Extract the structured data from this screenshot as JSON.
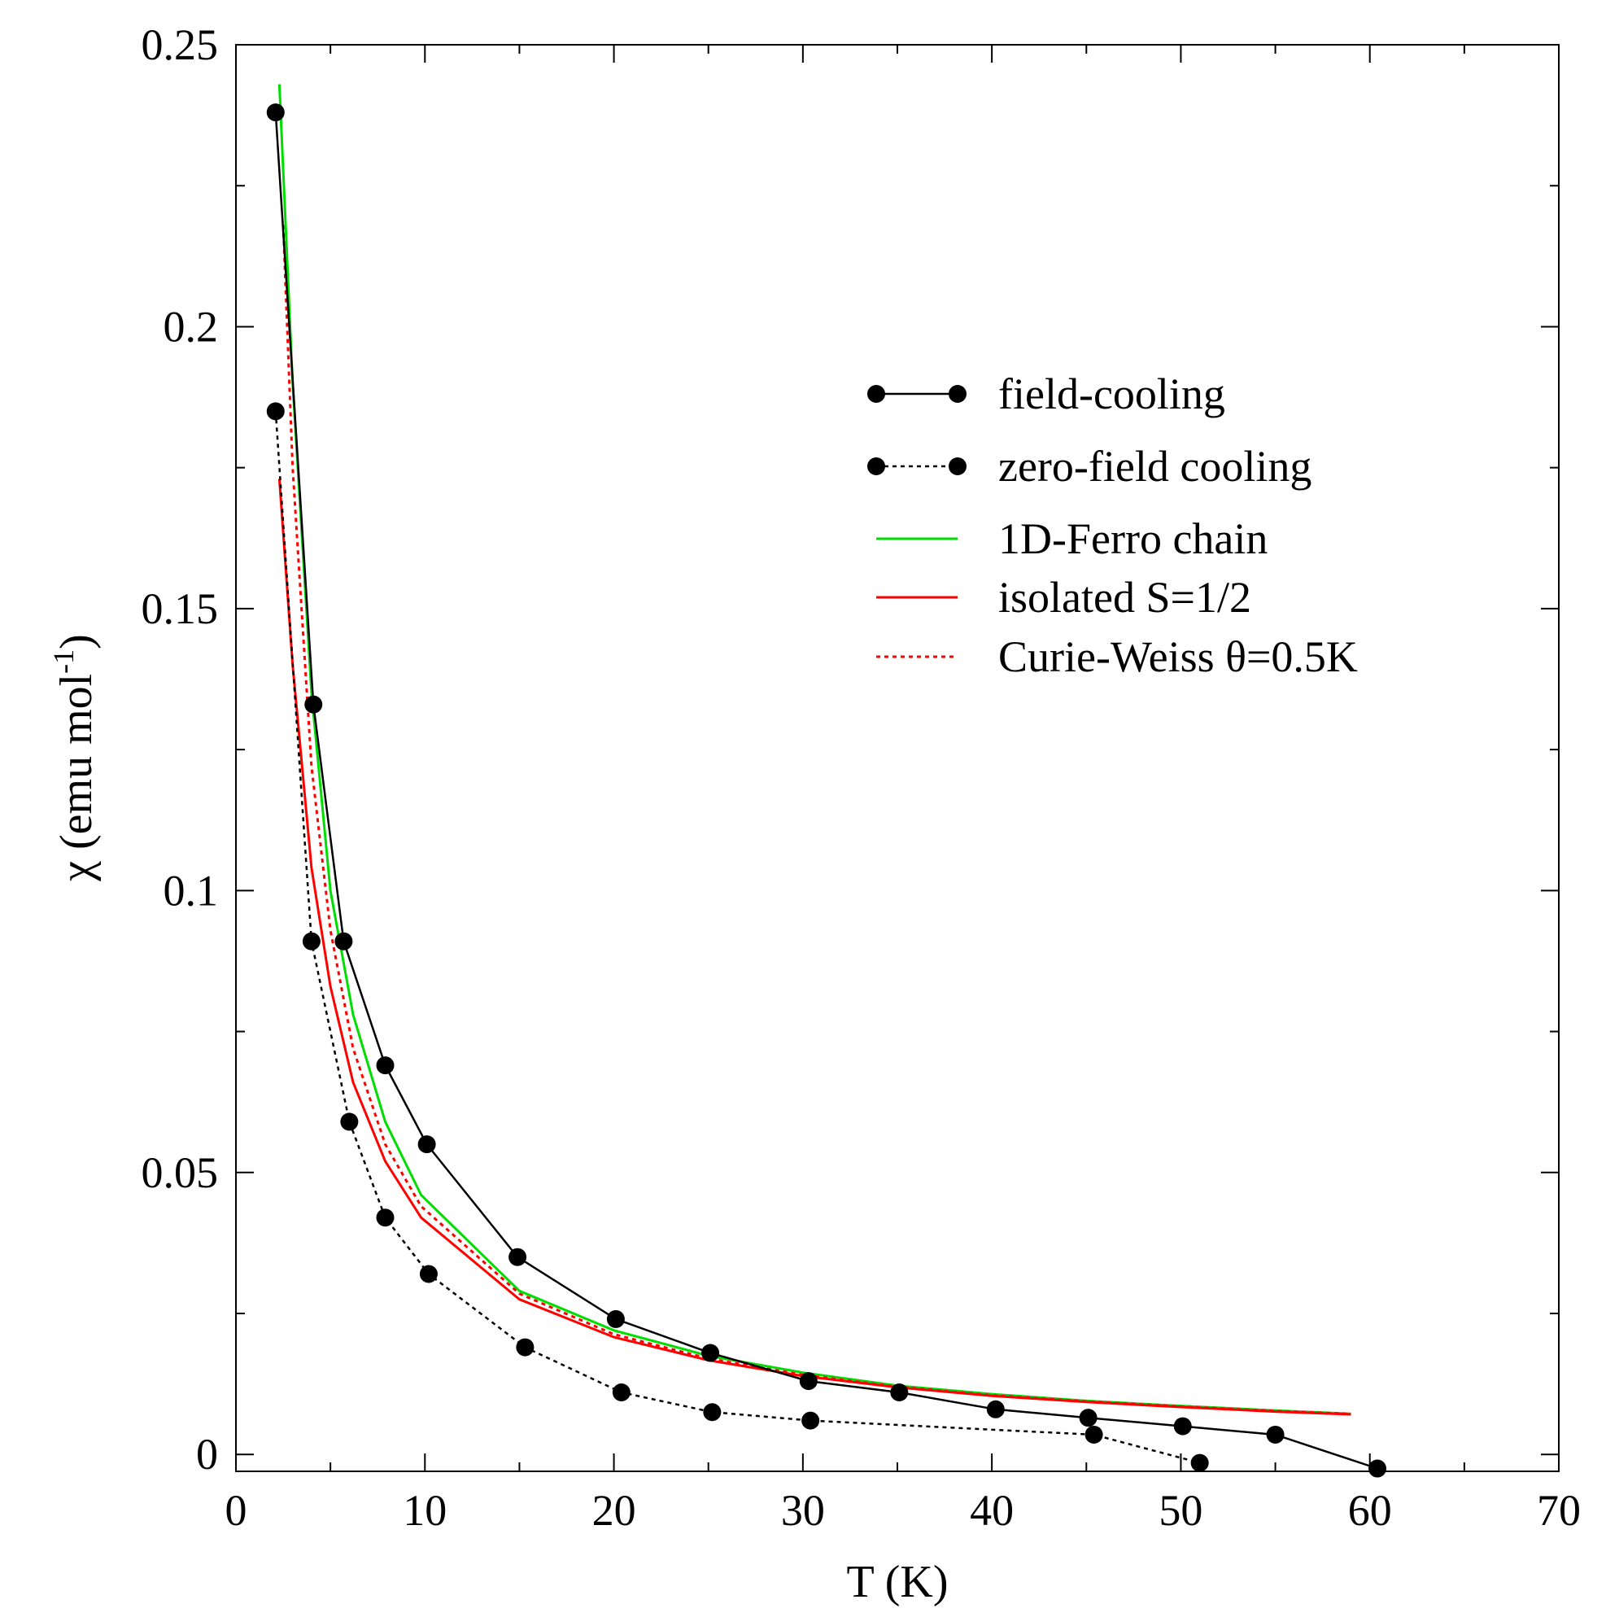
{
  "chart_data": {
    "type": "line",
    "title": "",
    "xlabel": "T (K)",
    "ylabel_main": "χ (emu mol",
    "ylabel_sup": "-1",
    "ylabel_close": ")",
    "xlim": [
      0,
      70
    ],
    "ylim": [
      -0.003,
      0.25
    ],
    "grid": false,
    "legend_position": "top-right",
    "x_ticks": [
      0,
      10,
      20,
      30,
      40,
      50,
      60,
      70
    ],
    "x_tick_labels": [
      "0",
      "10",
      "20",
      "30",
      "40",
      "50",
      "60",
      "70"
    ],
    "x_minor_ticks": [
      5,
      15,
      25,
      35,
      45,
      55,
      65
    ],
    "y_ticks": [
      0,
      0.05,
      0.1,
      0.15,
      0.2,
      0.25
    ],
    "y_tick_labels": [
      "0",
      "0.05",
      "0.1",
      "0.15",
      "0.2",
      "0.25"
    ],
    "y_minor_ticks": [
      0.025,
      0.075,
      0.125,
      0.175,
      0.225
    ],
    "series": [
      {
        "name": "field-cooling",
        "color": "#000000",
        "style": "solid",
        "markers": true,
        "x": [
          2.1,
          4.1,
          5.7,
          7.9,
          10.1,
          14.9,
          20.1,
          25.1,
          30.3,
          35.1,
          40.2,
          45.1,
          50.1,
          55.0,
          60.4
        ],
        "y": [
          0.238,
          0.133,
          0.091,
          0.069,
          0.055,
          0.035,
          0.024,
          0.018,
          0.013,
          0.011,
          0.008,
          0.0065,
          0.005,
          0.0035,
          -0.0025
        ]
      },
      {
        "name": "zero-field cooling",
        "color": "#000000",
        "style": "dotted",
        "markers": true,
        "x": [
          2.1,
          4.0,
          6.0,
          7.9,
          10.2,
          15.3,
          20.4,
          25.2,
          30.4,
          45.4,
          51.0
        ],
        "y": [
          0.185,
          0.091,
          0.059,
          0.042,
          0.032,
          0.019,
          0.011,
          0.0075,
          0.006,
          0.0035,
          -0.0015
        ]
      },
      {
        "name": "1D-Ferro chain",
        "color": "#00dd00",
        "style": "solid",
        "markers": false,
        "x": [
          2.3,
          3.0,
          4.0,
          5.0,
          6.2,
          7.9,
          9.8,
          15.0,
          20.0,
          25.0,
          30.0,
          35.0,
          40.0,
          45.0,
          50.0,
          55.0,
          59.0
        ],
        "y": [
          0.243,
          0.19,
          0.135,
          0.1,
          0.078,
          0.059,
          0.046,
          0.029,
          0.022,
          0.0175,
          0.0145,
          0.0122,
          0.0107,
          0.0095,
          0.0086,
          0.0078,
          0.0072
        ]
      },
      {
        "name": "isolated S=1/2",
        "color": "#ff0000",
        "style": "solid",
        "markers": false,
        "x": [
          2.3,
          3.0,
          4.0,
          5.0,
          6.2,
          7.9,
          9.8,
          15.0,
          20.0,
          25.0,
          30.0,
          35.0,
          40.0,
          45.0,
          50.0,
          55.0,
          59.0
        ],
        "y": [
          0.173,
          0.14,
          0.104,
          0.083,
          0.066,
          0.052,
          0.042,
          0.0275,
          0.0208,
          0.0167,
          0.0139,
          0.0119,
          0.0104,
          0.0093,
          0.0084,
          0.0076,
          0.0071
        ]
      },
      {
        "name": "Curie-Weiss θ=0.5K",
        "color": "#ff0000",
        "style": "dotted",
        "markers": false,
        "x": [
          2.5,
          3.0,
          4.0,
          5.0,
          6.2,
          7.9,
          9.8,
          15.0,
          20.0,
          25.0,
          30.0,
          35.0,
          40.0,
          45.0,
          50.0,
          55.0,
          59.0
        ],
        "y": [
          0.218,
          0.175,
          0.122,
          0.093,
          0.072,
          0.055,
          0.044,
          0.0285,
          0.0213,
          0.017,
          0.0141,
          0.012,
          0.0105,
          0.0094,
          0.0085,
          0.0077,
          0.0072
        ]
      }
    ]
  }
}
